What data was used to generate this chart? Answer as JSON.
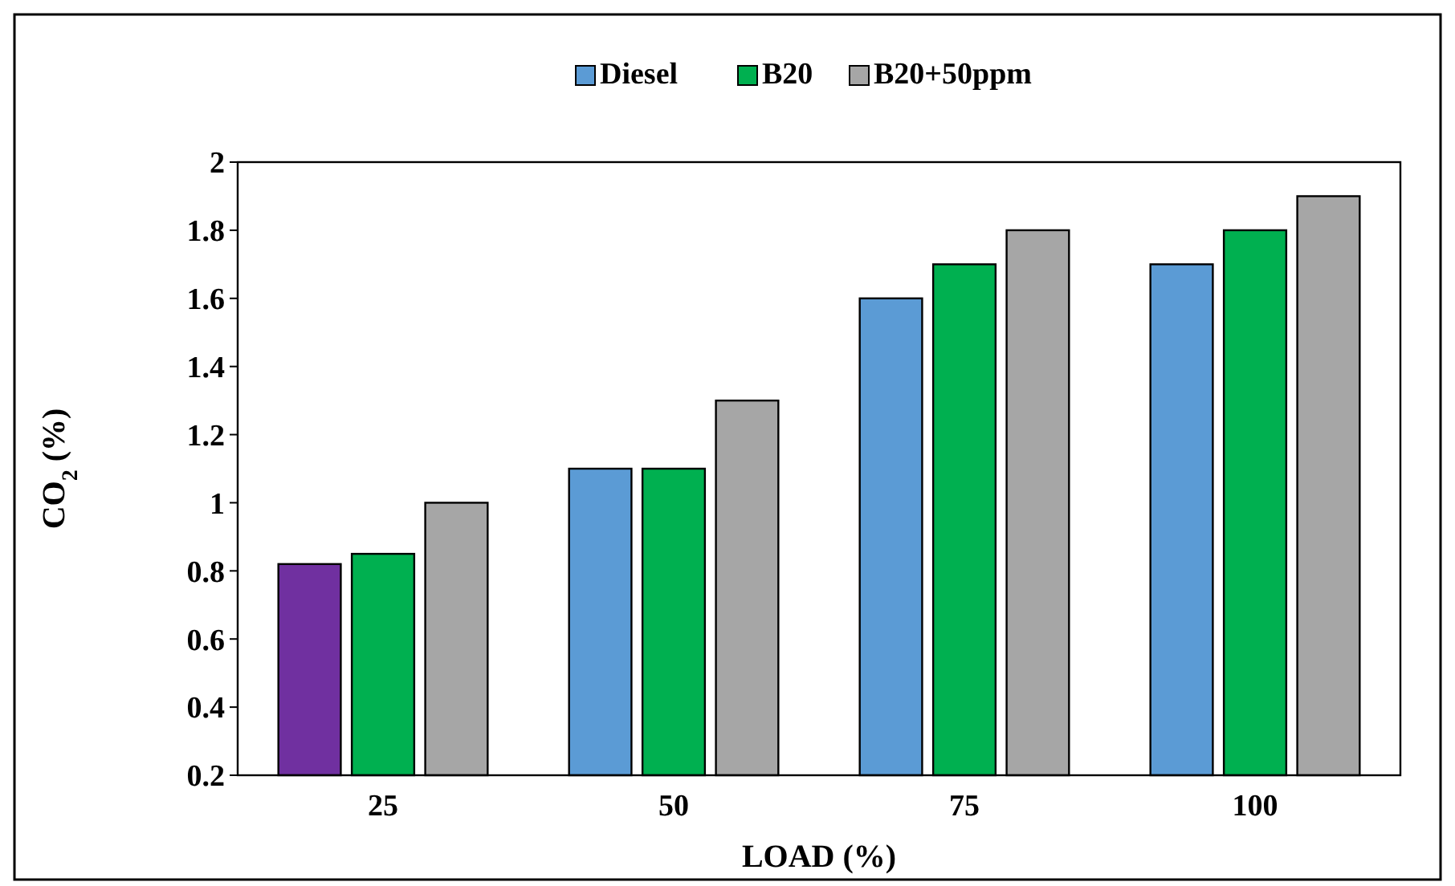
{
  "chart_data": {
    "type": "bar",
    "xlabel": "LOAD (%)",
    "ylabel": "CO$_{2}$ (%)",
    "categories": [
      "25",
      "50",
      "75",
      "100"
    ],
    "series": [
      {
        "name": "Diesel",
        "color": "#5b9bd5",
        "colors": [
          "#7030a0",
          "#5b9bd5",
          "#5b9bd5",
          "#5b9bd5"
        ],
        "values": [
          0.82,
          1.1,
          1.6,
          1.7
        ]
      },
      {
        "name": "B20",
        "color": "#00b050",
        "values": [
          0.85,
          1.1,
          1.7,
          1.8
        ]
      },
      {
        "name": "B20+50ppm",
        "color": "#a6a6a6",
        "values": [
          1.0,
          1.3,
          1.8,
          1.9
        ]
      }
    ],
    "ylim": [
      0.2,
      2
    ],
    "yticks": [
      0.2,
      0.4,
      0.6,
      0.8,
      1,
      1.2,
      1.4,
      1.6,
      1.8,
      2
    ],
    "grid": false,
    "legend": "top"
  }
}
